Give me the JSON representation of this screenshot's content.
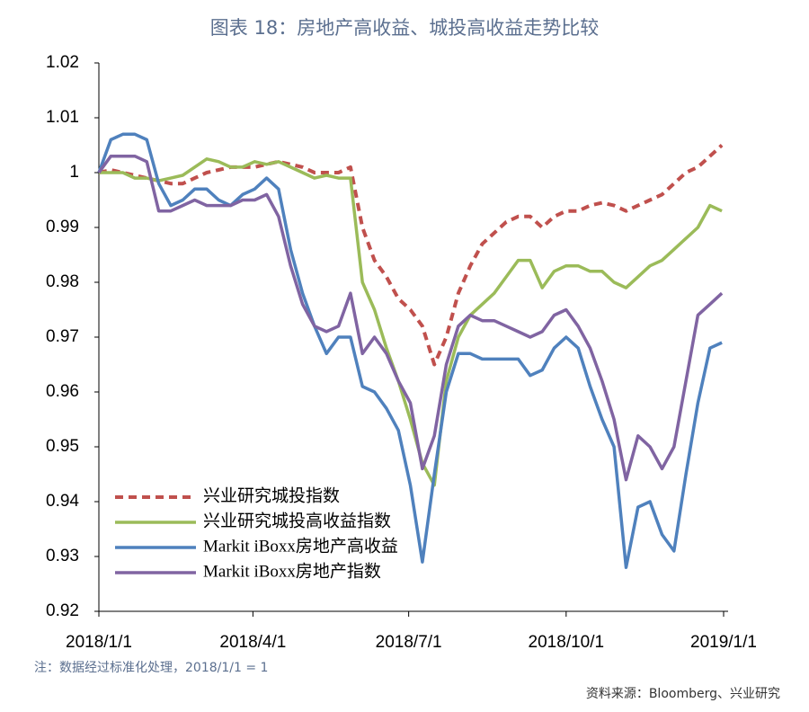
{
  "title": "图表 18：房地产高收益、城投高收益走势比较",
  "note": "注：数据经过标准化处理，2018/1/1 = 1",
  "source": "资料来源：Bloomberg、兴业研究",
  "chart_data": {
    "type": "line",
    "x": [
      "2018/1/1",
      "2018/1/8",
      "2018/1/15",
      "2018/1/22",
      "2018/1/29",
      "2018/2/5",
      "2018/2/12",
      "2018/2/19",
      "2018/2/26",
      "2018/3/5",
      "2018/3/12",
      "2018/3/19",
      "2018/3/26",
      "2018/4/2",
      "2018/4/9",
      "2018/4/16",
      "2018/4/23",
      "2018/4/30",
      "2018/5/7",
      "2018/5/14",
      "2018/5/21",
      "2018/5/28",
      "2018/6/4",
      "2018/6/11",
      "2018/6/18",
      "2018/6/25",
      "2018/7/2",
      "2018/7/9",
      "2018/7/16",
      "2018/7/23",
      "2018/7/30",
      "2018/8/6",
      "2018/8/13",
      "2018/8/20",
      "2018/8/27",
      "2018/9/3",
      "2018/9/10",
      "2018/9/17",
      "2018/9/24",
      "2018/10/1",
      "2018/10/8",
      "2018/10/15",
      "2018/10/22",
      "2018/10/29",
      "2018/11/5",
      "2018/11/12",
      "2018/11/19",
      "2018/11/26",
      "2018/12/3",
      "2018/12/10",
      "2018/12/17",
      "2018/12/24",
      "2018/12/31"
    ],
    "series": [
      {
        "name": "兴业研究城投指数",
        "color": "#c0504d",
        "style": "dashed",
        "values": [
          1.0,
          1.0005,
          1.0,
          0.9995,
          0.999,
          0.9985,
          0.998,
          0.998,
          0.999,
          1.0,
          1.0005,
          1.001,
          1.001,
          1.001,
          1.0015,
          1.002,
          1.0015,
          1.001,
          1.0,
          1.0,
          1.0,
          1.001,
          0.99,
          0.984,
          0.981,
          0.977,
          0.975,
          0.972,
          0.965,
          0.97,
          0.978,
          0.983,
          0.987,
          0.989,
          0.991,
          0.992,
          0.992,
          0.99,
          0.992,
          0.993,
          0.993,
          0.994,
          0.9945,
          0.994,
          0.993,
          0.994,
          0.995,
          0.996,
          0.998,
          1.0,
          1.001,
          1.003,
          1.005
        ]
      },
      {
        "name": "兴业研究城投高收益指数",
        "color": "#9bbb59",
        "style": "solid",
        "values": [
          1.0,
          1.0,
          1.0,
          0.999,
          0.999,
          0.9985,
          0.999,
          0.9995,
          1.001,
          1.0025,
          1.002,
          1.001,
          1.001,
          1.002,
          1.0015,
          1.002,
          1.001,
          1.0,
          0.999,
          0.9995,
          0.999,
          0.999,
          0.98,
          0.975,
          0.968,
          0.962,
          0.955,
          0.947,
          0.943,
          0.962,
          0.97,
          0.974,
          0.976,
          0.978,
          0.981,
          0.984,
          0.984,
          0.979,
          0.982,
          0.983,
          0.983,
          0.982,
          0.982,
          0.98,
          0.979,
          0.981,
          0.983,
          0.984,
          0.986,
          0.988,
          0.99,
          0.994,
          0.993
        ]
      },
      {
        "name": "Markit iBoxx房地产高收益",
        "color": "#4f81bd",
        "style": "solid",
        "values": [
          1.0,
          1.006,
          1.007,
          1.007,
          1.006,
          0.998,
          0.994,
          0.995,
          0.997,
          0.997,
          0.995,
          0.994,
          0.996,
          0.997,
          0.999,
          0.997,
          0.986,
          0.978,
          0.972,
          0.967,
          0.97,
          0.97,
          0.961,
          0.96,
          0.957,
          0.953,
          0.943,
          0.929,
          0.945,
          0.96,
          0.967,
          0.967,
          0.966,
          0.966,
          0.966,
          0.966,
          0.963,
          0.964,
          0.968,
          0.97,
          0.968,
          0.961,
          0.955,
          0.95,
          0.928,
          0.939,
          0.94,
          0.934,
          0.931,
          0.945,
          0.958,
          0.968,
          0.969
        ]
      },
      {
        "name": "Markit iBoxx房地产指数",
        "color": "#8064a2",
        "style": "solid",
        "values": [
          1.0,
          1.003,
          1.003,
          1.003,
          1.002,
          0.993,
          0.993,
          0.994,
          0.995,
          0.994,
          0.994,
          0.994,
          0.995,
          0.995,
          0.996,
          0.992,
          0.983,
          0.976,
          0.972,
          0.971,
          0.972,
          0.978,
          0.967,
          0.97,
          0.967,
          0.962,
          0.958,
          0.946,
          0.952,
          0.965,
          0.972,
          0.974,
          0.973,
          0.973,
          0.972,
          0.971,
          0.97,
          0.971,
          0.974,
          0.975,
          0.972,
          0.968,
          0.962,
          0.955,
          0.944,
          0.952,
          0.95,
          0.946,
          0.95,
          0.962,
          0.974,
          0.976,
          0.978
        ]
      }
    ],
    "xlim": [
      "2018/1/1",
      "2019/1/1"
    ],
    "xticks": [
      "2018/1/1",
      "2018/4/1",
      "2018/7/1",
      "2018/10/1",
      "2019/1/1"
    ],
    "ylim": [
      0.92,
      1.02
    ],
    "yticks": [
      0.92,
      0.93,
      0.94,
      0.95,
      0.96,
      0.97,
      0.98,
      0.99,
      1,
      1.01,
      1.02
    ],
    "legend": "lower-left"
  }
}
